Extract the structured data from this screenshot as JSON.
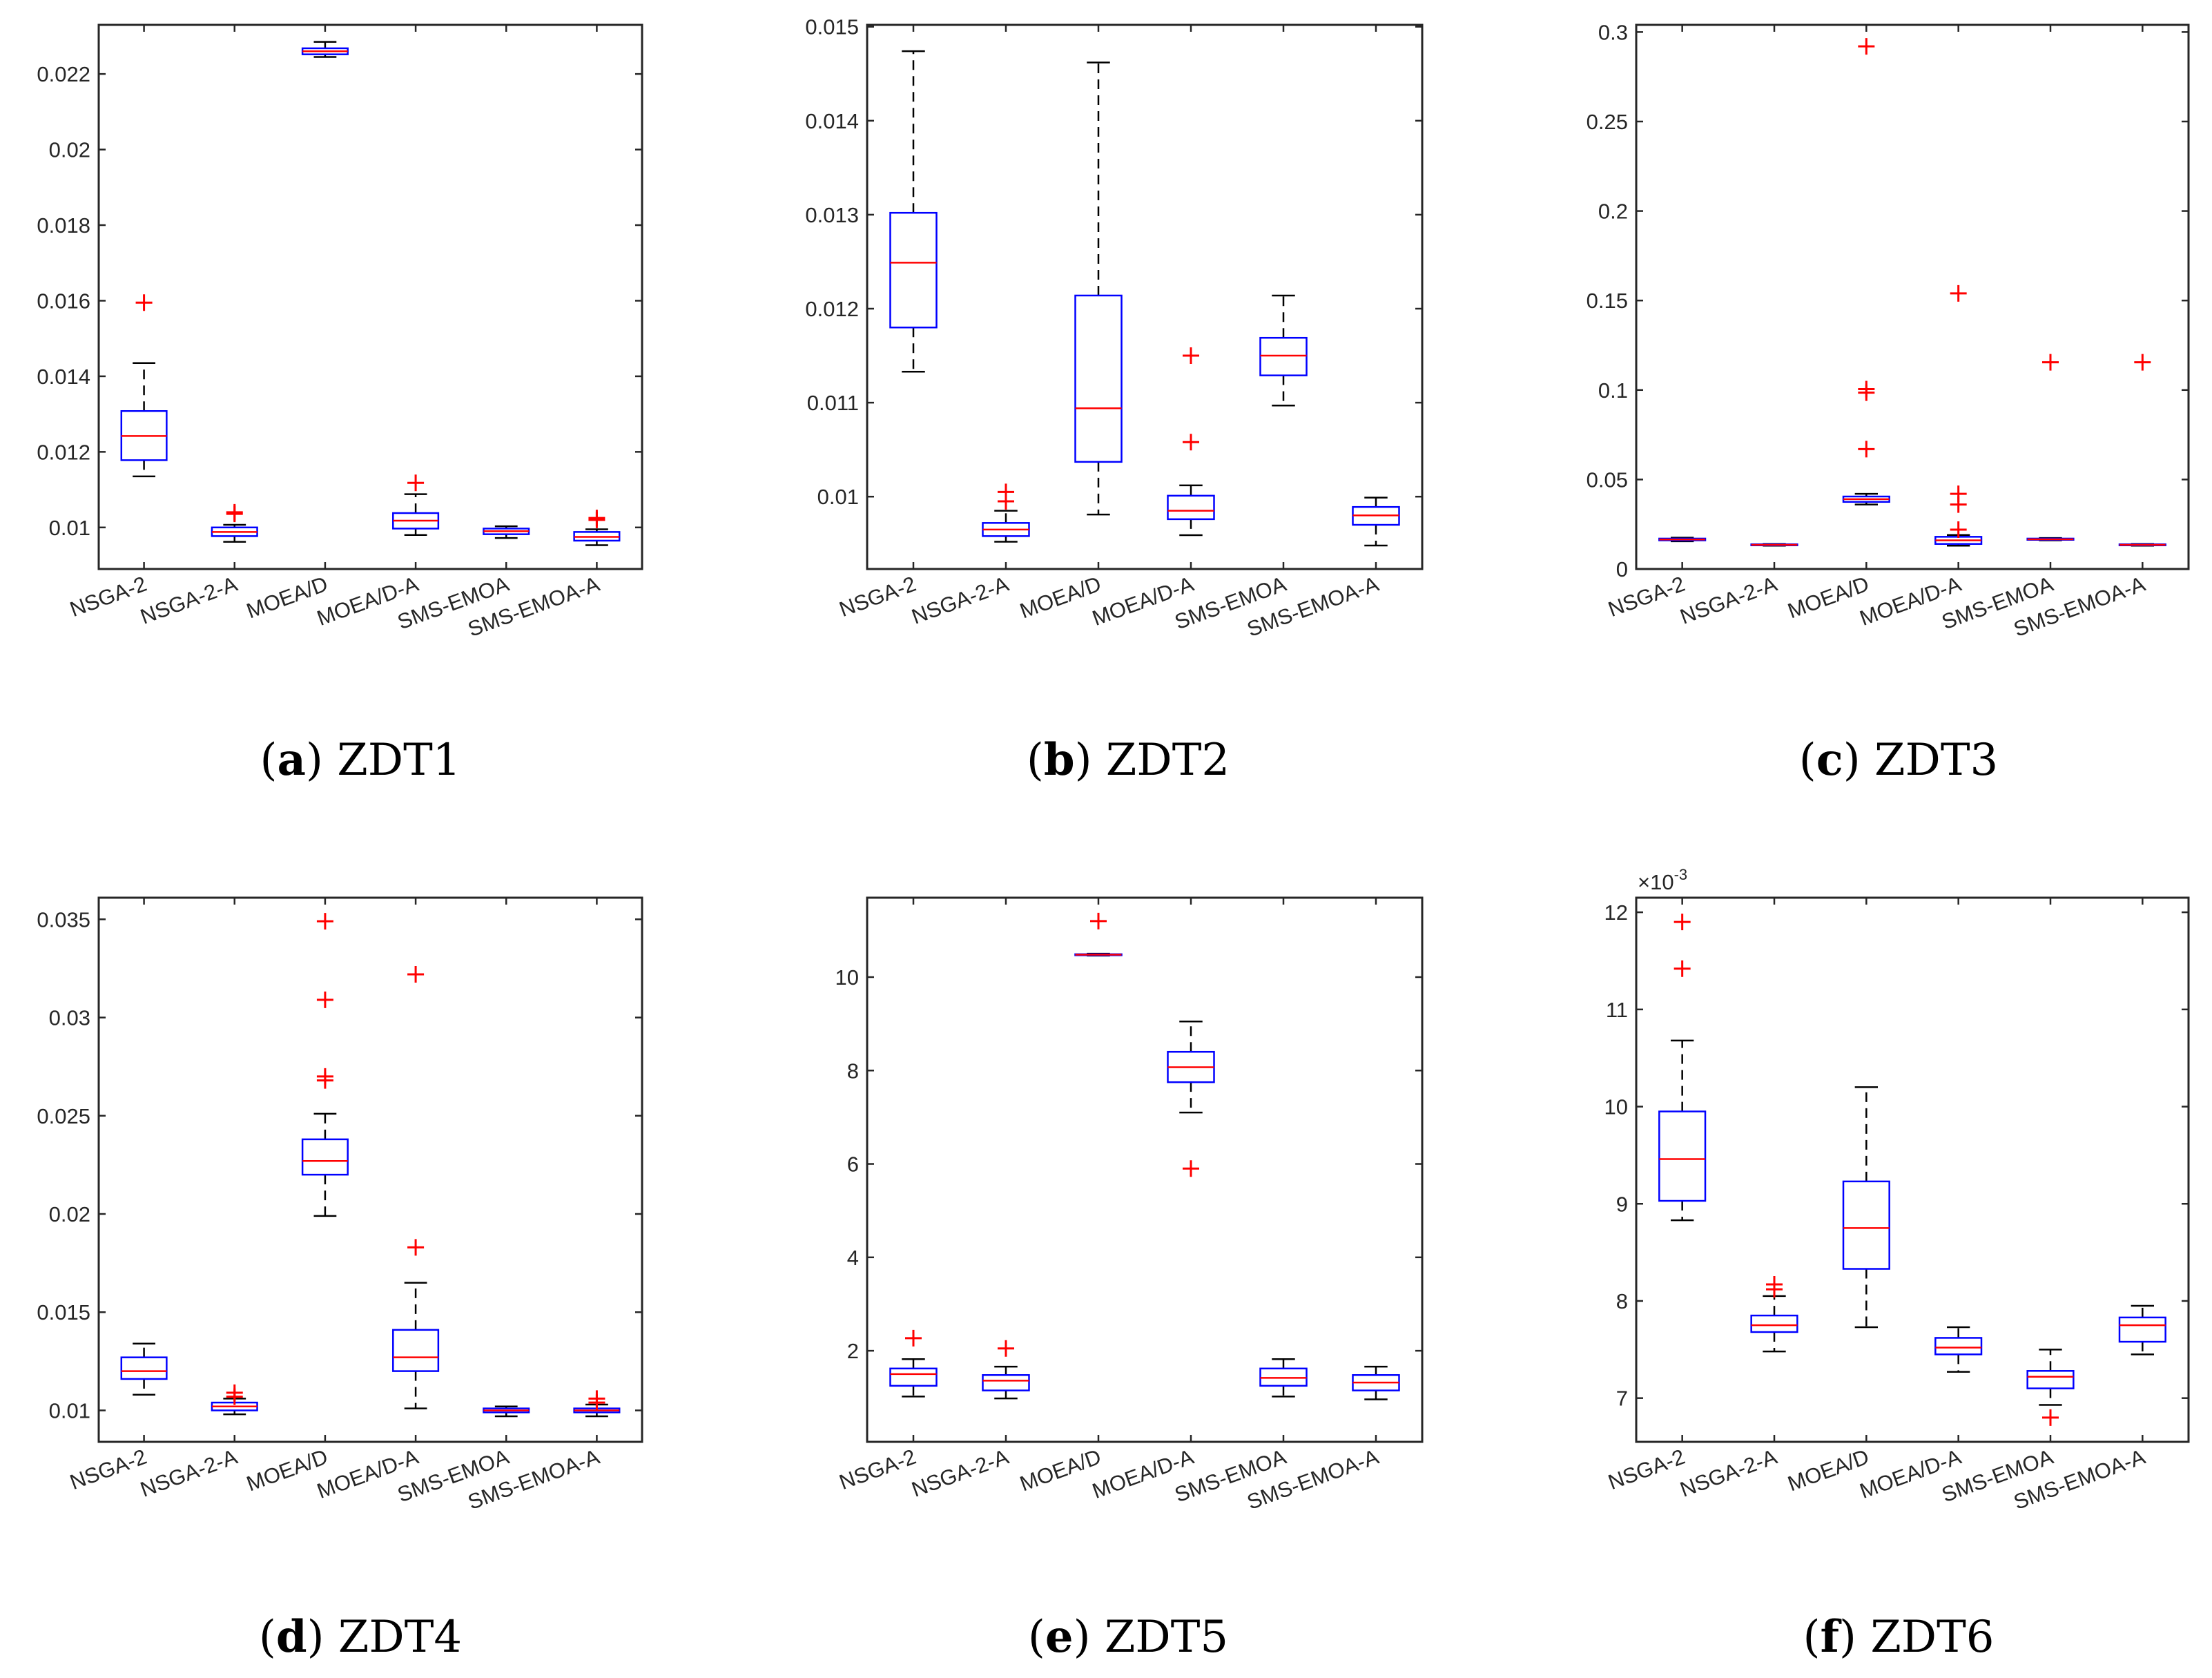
{
  "figure": {
    "colors": {
      "box": "#0000ff",
      "median": "#ff0000",
      "outlier": "#ff0000",
      "whisker": "#000000",
      "axis": "#262626"
    }
  },
  "chart_data": [
    {
      "type": "boxplot",
      "label": "a",
      "title": "ZDT1",
      "categories": [
        "NSGA-2",
        "NSGA-2-A",
        "MOEA/D",
        "MOEA/D-A",
        "SMS-EMOA",
        "SMS-EMOA-A"
      ],
      "ylim": [
        0.0089,
        0.0233
      ],
      "yticks": [
        0.01,
        0.012,
        0.014,
        0.016,
        0.018,
        0.02,
        0.022
      ],
      "ytick_labels": [
        "0.01",
        "0.012",
        "0.014",
        "0.016",
        "0.018",
        "0.02",
        "0.022"
      ],
      "scale_label": "",
      "boxes": [
        {
          "lw": 0.01135,
          "q1": 0.01178,
          "median": 0.01242,
          "q3": 0.01308,
          "uw": 0.01435,
          "outliers": [
            0.01595
          ]
        },
        {
          "lw": 0.00962,
          "q1": 0.00977,
          "median": 0.00988,
          "q3": 0.01,
          "uw": 0.01007,
          "outliers": [
            0.0104,
            0.01036
          ]
        },
        {
          "lw": 0.02245,
          "q1": 0.02252,
          "median": 0.0226,
          "q3": 0.02268,
          "uw": 0.02285,
          "outliers": []
        },
        {
          "lw": 0.0098,
          "q1": 0.00997,
          "median": 0.01018,
          "q3": 0.01038,
          "uw": 0.01088,
          "outliers": [
            0.01118
          ]
        },
        {
          "lw": 0.00972,
          "q1": 0.00982,
          "median": 0.0099,
          "q3": 0.00997,
          "uw": 0.01003,
          "outliers": []
        },
        {
          "lw": 0.00953,
          "q1": 0.00965,
          "median": 0.00975,
          "q3": 0.00988,
          "uw": 0.00995,
          "outliers": [
            0.01025,
            0.0102
          ]
        }
      ]
    },
    {
      "type": "boxplot",
      "label": "b",
      "title": "ZDT2",
      "categories": [
        "NSGA-2",
        "NSGA-2-A",
        "MOEA/D",
        "MOEA/D-A",
        "SMS-EMOA",
        "SMS-EMOA-A"
      ],
      "ylim": [
        0.00923,
        0.01502
      ],
      "yticks": [
        0.01,
        0.011,
        0.012,
        0.013,
        0.014,
        0.015
      ],
      "ytick_labels": [
        "0.01",
        "0.011",
        "0.012",
        "0.013",
        "0.014",
        "0.015"
      ],
      "scale_label": "",
      "boxes": [
        {
          "lw": 0.01133,
          "q1": 0.0118,
          "median": 0.01249,
          "q3": 0.01302,
          "uw": 0.01474,
          "outliers": []
        },
        {
          "lw": 0.00952,
          "q1": 0.00958,
          "median": 0.00965,
          "q3": 0.00972,
          "uw": 0.00985,
          "outliers": [
            0.01005,
            0.00995
          ]
        },
        {
          "lw": 0.00981,
          "q1": 0.01037,
          "median": 0.01094,
          "q3": 0.01214,
          "uw": 0.01462,
          "outliers": []
        },
        {
          "lw": 0.00959,
          "q1": 0.00976,
          "median": 0.00985,
          "q3": 0.01001,
          "uw": 0.01012,
          "outliers": [
            0.0115,
            0.01058
          ]
        },
        {
          "lw": 0.01097,
          "q1": 0.01129,
          "median": 0.0115,
          "q3": 0.01169,
          "uw": 0.01214,
          "outliers": []
        },
        {
          "lw": 0.00948,
          "q1": 0.0097,
          "median": 0.0098,
          "q3": 0.00989,
          "uw": 0.00999,
          "outliers": []
        }
      ]
    },
    {
      "type": "boxplot",
      "label": "c",
      "title": "ZDT3",
      "categories": [
        "NSGA-2",
        "NSGA-2-A",
        "MOEA/D",
        "MOEA/D-A",
        "SMS-EMOA",
        "SMS-EMOA-A"
      ],
      "ylim": [
        0,
        0.304
      ],
      "yticks": [
        0,
        0.05,
        0.1,
        0.15,
        0.2,
        0.25,
        0.3
      ],
      "ytick_labels": [
        "0",
        "0.05",
        "0.1",
        "0.15",
        "0.2",
        "0.25",
        "0.3"
      ],
      "scale_label": "",
      "boxes": [
        {
          "lw": 0.0155,
          "q1": 0.016,
          "median": 0.0165,
          "q3": 0.017,
          "uw": 0.0175,
          "outliers": []
        },
        {
          "lw": 0.013,
          "q1": 0.0133,
          "median": 0.0135,
          "q3": 0.0138,
          "uw": 0.014,
          "outliers": []
        },
        {
          "lw": 0.036,
          "q1": 0.0375,
          "median": 0.039,
          "q3": 0.0405,
          "uw": 0.042,
          "outliers": [
            0.292,
            0.1005,
            0.0985,
            0.067
          ]
        },
        {
          "lw": 0.013,
          "q1": 0.014,
          "median": 0.016,
          "q3": 0.018,
          "uw": 0.019,
          "outliers": [
            0.154,
            0.042,
            0.036,
            0.022
          ]
        },
        {
          "lw": 0.016,
          "q1": 0.0163,
          "median": 0.0166,
          "q3": 0.017,
          "uw": 0.0173,
          "outliers": [
            0.1155
          ]
        },
        {
          "lw": 0.013,
          "q1": 0.0133,
          "median": 0.0135,
          "q3": 0.0138,
          "uw": 0.014,
          "outliers": [
            0.1155
          ]
        }
      ]
    },
    {
      "type": "boxplot",
      "label": "d",
      "title": "ZDT4",
      "categories": [
        "NSGA-2",
        "NSGA-2-A",
        "MOEA/D",
        "MOEA/D-A",
        "SMS-EMOA",
        "SMS-EMOA-A"
      ],
      "ylim": [
        0.0084,
        0.0361
      ],
      "yticks": [
        0.01,
        0.015,
        0.02,
        0.025,
        0.03,
        0.035
      ],
      "ytick_labels": [
        "0.01",
        "0.015",
        "0.02",
        "0.025",
        "0.03",
        "0.035"
      ],
      "scale_label": "",
      "boxes": [
        {
          "lw": 0.0108,
          "q1": 0.0116,
          "median": 0.012,
          "q3": 0.0127,
          "uw": 0.0134,
          "outliers": []
        },
        {
          "lw": 0.0098,
          "q1": 0.01,
          "median": 0.0102,
          "q3": 0.0104,
          "uw": 0.0106,
          "outliers": [
            0.0109,
            0.0107
          ]
        },
        {
          "lw": 0.0199,
          "q1": 0.022,
          "median": 0.0227,
          "q3": 0.0238,
          "uw": 0.0251,
          "outliers": [
            0.0349,
            0.0309,
            0.027,
            0.0268
          ]
        },
        {
          "lw": 0.0101,
          "q1": 0.012,
          "median": 0.0127,
          "q3": 0.0141,
          "uw": 0.0165,
          "outliers": [
            0.0322,
            0.0183
          ]
        },
        {
          "lw": 0.0097,
          "q1": 0.0099,
          "median": 0.01,
          "q3": 0.0101,
          "uw": 0.0102,
          "outliers": []
        },
        {
          "lw": 0.0097,
          "q1": 0.0099,
          "median": 0.01,
          "q3": 0.0101,
          "uw": 0.0103,
          "outliers": [
            0.0106,
            0.0104
          ]
        }
      ]
    },
    {
      "type": "boxplot",
      "label": "e",
      "title": "ZDT5",
      "categories": [
        "NSGA-2",
        "NSGA-2-A",
        "MOEA/D",
        "MOEA/D-A",
        "SMS-EMOA",
        "SMS-EMOA-A"
      ],
      "ylim": [
        0.05,
        11.7
      ],
      "yticks": [
        2,
        4,
        6,
        8,
        10
      ],
      "ytick_labels": [
        "2",
        "4",
        "6",
        "8",
        "10"
      ],
      "scale_label": "",
      "boxes": [
        {
          "lw": 1.02,
          "q1": 1.25,
          "median": 1.5,
          "q3": 1.62,
          "uw": 1.82,
          "outliers": [
            2.27
          ]
        },
        {
          "lw": 0.98,
          "q1": 1.15,
          "median": 1.36,
          "q3": 1.48,
          "uw": 1.66,
          "outliers": [
            2.05
          ]
        },
        {
          "lw": 10.46,
          "q1": 10.47,
          "median": 10.48,
          "q3": 10.49,
          "uw": 10.5,
          "outliers": [
            11.2
          ]
        },
        {
          "lw": 7.1,
          "q1": 7.75,
          "median": 8.07,
          "q3": 8.4,
          "uw": 9.05,
          "outliers": [
            5.9
          ]
        },
        {
          "lw": 1.02,
          "q1": 1.25,
          "median": 1.42,
          "q3": 1.62,
          "uw": 1.82,
          "outliers": []
        },
        {
          "lw": 0.96,
          "q1": 1.15,
          "median": 1.32,
          "q3": 1.48,
          "uw": 1.66,
          "outliers": []
        }
      ]
    },
    {
      "type": "boxplot",
      "label": "f",
      "title": "ZDT6",
      "categories": [
        "NSGA-2",
        "NSGA-2-A",
        "MOEA/D",
        "MOEA/D-A",
        "SMS-EMOA",
        "SMS-EMOA-A"
      ],
      "ylim": [
        6.55,
        12.15
      ],
      "yticks": [
        7,
        8,
        9,
        10,
        11,
        12
      ],
      "ytick_labels": [
        "7",
        "8",
        "9",
        "10",
        "11",
        "12"
      ],
      "scale_label": "×10",
      "scale_exponent": "-3",
      "boxes": [
        {
          "lw": 8.83,
          "q1": 9.03,
          "median": 9.46,
          "q3": 9.95,
          "uw": 10.68,
          "outliers": [
            11.9,
            11.42
          ]
        },
        {
          "lw": 7.48,
          "q1": 7.68,
          "median": 7.75,
          "q3": 7.85,
          "uw": 8.05,
          "outliers": [
            8.17,
            8.12
          ]
        },
        {
          "lw": 7.73,
          "q1": 8.33,
          "median": 8.75,
          "q3": 9.23,
          "uw": 10.2,
          "outliers": []
        },
        {
          "lw": 7.27,
          "q1": 7.45,
          "median": 7.52,
          "q3": 7.62,
          "uw": 7.73,
          "outliers": []
        },
        {
          "lw": 6.93,
          "q1": 7.1,
          "median": 7.22,
          "q3": 7.28,
          "uw": 7.5,
          "outliers": [
            6.8
          ]
        },
        {
          "lw": 7.45,
          "q1": 7.58,
          "median": 7.75,
          "q3": 7.83,
          "uw": 7.95,
          "outliers": []
        }
      ]
    }
  ]
}
